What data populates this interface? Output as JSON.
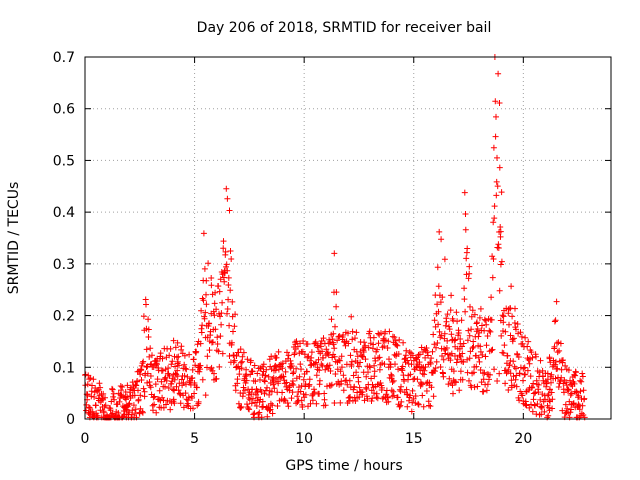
{
  "chart_data": {
    "type": "scatter",
    "title": "Day 206 of 2018, SRMTID for receiver bail",
    "xlabel": "GPS time / hours",
    "ylabel": "SRMTID / TECUs",
    "xlim": [
      0,
      24
    ],
    "ylim": [
      0,
      0.7
    ],
    "xticks": [
      0,
      5,
      10,
      15,
      20
    ],
    "xtick_labels": [
      "0",
      "5",
      "10",
      "15",
      "20"
    ],
    "yticks": [
      0,
      0.1,
      0.2,
      0.3,
      0.4,
      0.5,
      0.6,
      0.7
    ],
    "ytick_labels": [
      "0",
      "0.1",
      "0.2",
      "0.3",
      "0.4",
      "0.5",
      "0.6",
      "0.7"
    ],
    "grid": true,
    "marker": "+",
    "series": [
      {
        "name": "SRMTID",
        "color": "#ff0000",
        "profile": {
          "x": [
            0,
            0.3,
            0.8,
            1.5,
            2.2,
            2.7,
            3.2,
            4.0,
            4.5,
            5.0,
            5.5,
            6.0,
            6.3,
            6.6,
            7.0,
            7.5,
            8.0,
            9.0,
            10.0,
            11.0,
            12.0,
            13.0,
            14.0,
            15.0,
            15.8,
            16.2,
            16.8,
            17.3,
            18.0,
            18.5,
            18.8,
            19.0,
            19.3,
            19.8,
            20.5,
            21.0,
            21.5,
            22.0,
            22.8
          ],
          "y": [
            0.05,
            0.04,
            0.02,
            0.02,
            0.03,
            0.06,
            0.07,
            0.08,
            0.08,
            0.07,
            0.13,
            0.17,
            0.22,
            0.2,
            0.08,
            0.06,
            0.05,
            0.08,
            0.09,
            0.09,
            0.1,
            0.1,
            0.1,
            0.07,
            0.09,
            0.18,
            0.12,
            0.15,
            0.14,
            0.12,
            0.3,
            0.2,
            0.12,
            0.11,
            0.07,
            0.05,
            0.08,
            0.05,
            0.04
          ]
        },
        "peaks": [
          {
            "x": 6.5,
            "y": 0.4
          },
          {
            "x": 5.5,
            "y": 0.29
          },
          {
            "x": 16.1,
            "y": 0.28
          },
          {
            "x": 17.4,
            "y": 0.35
          },
          {
            "x": 18.8,
            "y": 0.63
          },
          {
            "x": 19.3,
            "y": 0.27
          },
          {
            "x": 21.5,
            "y": 0.21
          },
          {
            "x": 11.4,
            "y": 0.23
          },
          {
            "x": 2.8,
            "y": 0.18
          }
        ]
      }
    ]
  }
}
